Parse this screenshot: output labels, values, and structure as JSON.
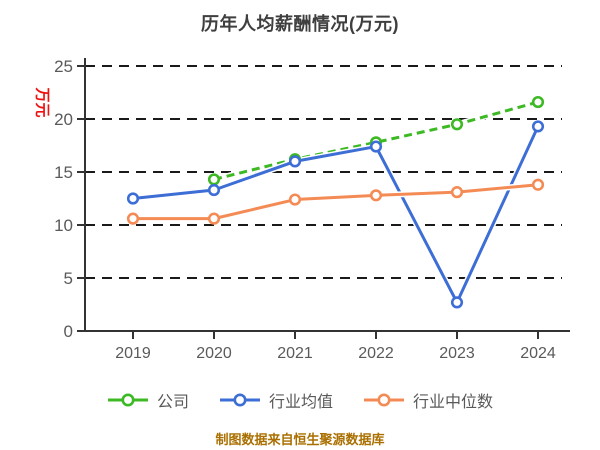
{
  "title": "历年人均薪酬情况(万元)",
  "y_axis_label": "万元",
  "footer": "制图数据来自恒生聚源数据库",
  "colors": {
    "background": "#ffffff",
    "title_text": "#3f3f3f",
    "axis_line": "#333333",
    "tick_label": "#5a5a5a",
    "gridline": "#1a1a1a",
    "y_axis_label_red": "#ee1111",
    "footer_text": "#aa6f00",
    "legend_text": "#595959",
    "marker_fill": "#ffffff"
  },
  "chart_data": {
    "type": "line",
    "title": "历年人均薪酬情况(万元)",
    "ylabel": "万元",
    "x": [
      "2019",
      "2020",
      "2021",
      "2022",
      "2023",
      "2024"
    ],
    "series": [
      {
        "name": "公司",
        "color": "#3cb923",
        "line_style": "dashed",
        "values": [
          null,
          14.3,
          16.2,
          17.8,
          19.5,
          21.6
        ]
      },
      {
        "name": "行业均值",
        "color": "#3d6ed5",
        "line_style": "solid",
        "values": [
          12.5,
          13.3,
          16.0,
          17.4,
          2.7,
          19.3
        ]
      },
      {
        "name": "行业中位数",
        "color": "#f48b55",
        "line_style": "solid",
        "values": [
          10.6,
          10.6,
          12.4,
          12.8,
          13.1,
          13.8
        ]
      }
    ],
    "ylim": [
      0,
      25
    ],
    "yticks": [
      0,
      5,
      10,
      15,
      20,
      25
    ],
    "grid": "horizontal dashed",
    "legend_position": "bottom",
    "marker": "circle-white-fill"
  }
}
